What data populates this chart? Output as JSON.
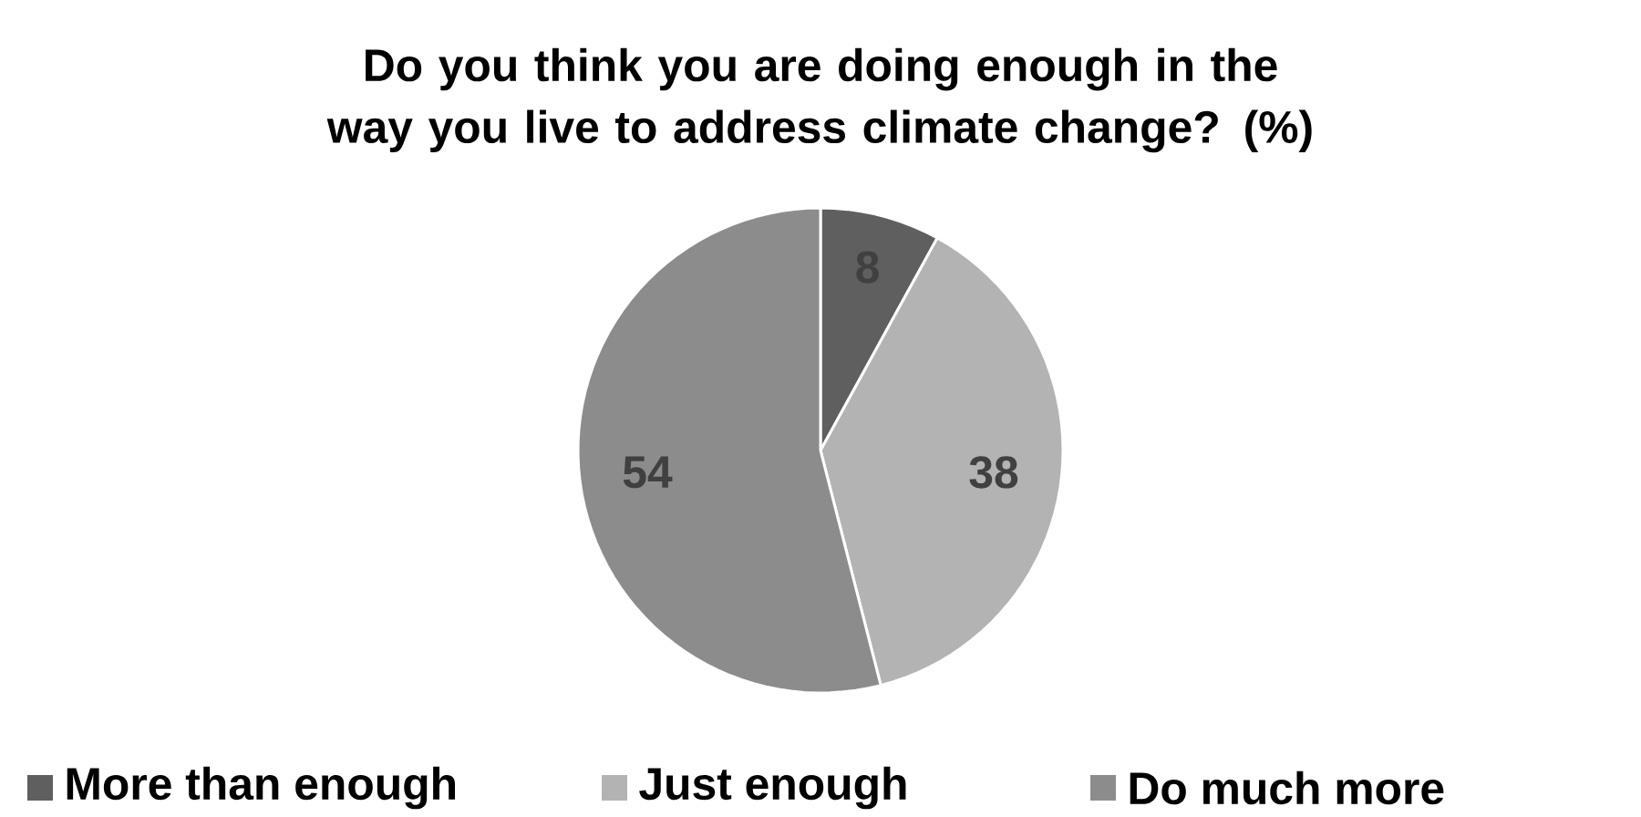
{
  "chart_data": {
    "type": "pie",
    "title": "Do you think you are doing enough in the way you live to address climate change?  (%)",
    "categories": [
      "More than enough",
      "Just enough",
      "Do much more"
    ],
    "values": [
      8,
      38,
      54
    ],
    "colors": [
      "#5f5f5f",
      "#b3b3b3",
      "#8c8c8c"
    ],
    "data_labels": true,
    "legend": "bottom"
  }
}
